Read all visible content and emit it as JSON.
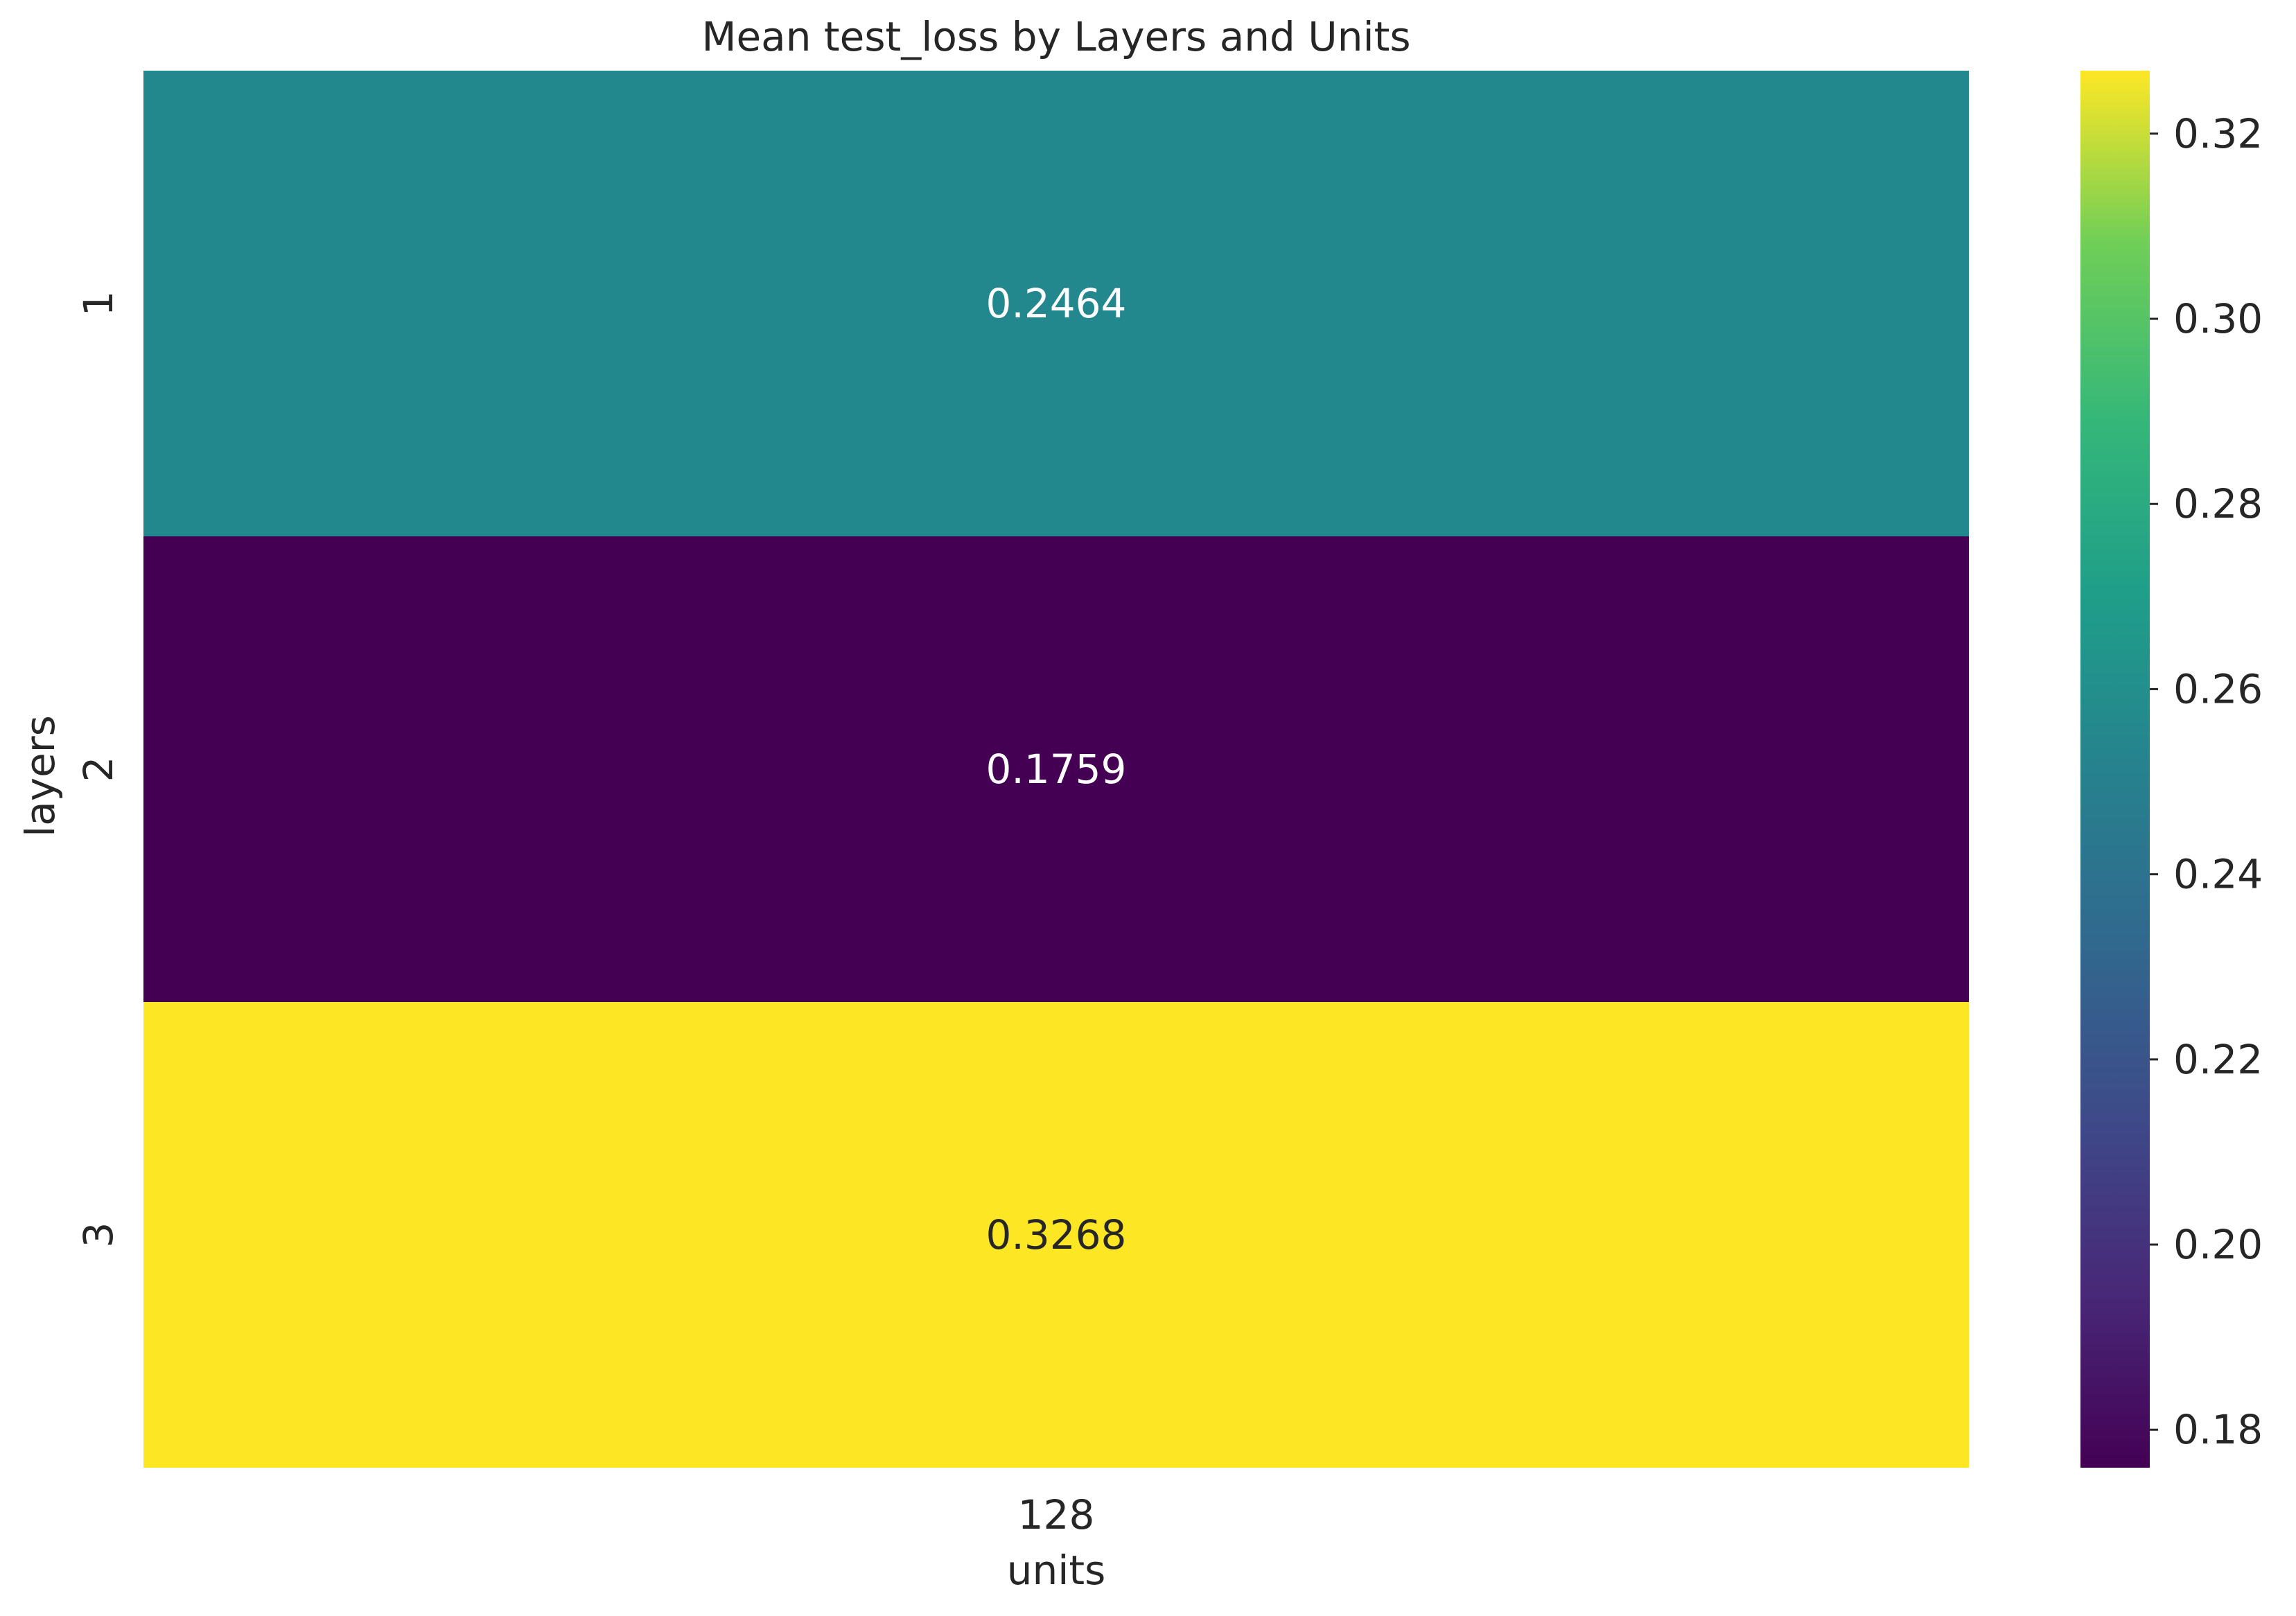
{
  "chart_data": {
    "type": "heatmap",
    "title": "Mean test_loss by Layers and Units",
    "xlabel": "units",
    "ylabel": "layers",
    "x_categories": [
      "128"
    ],
    "y_categories": [
      "1",
      "2",
      "3"
    ],
    "values": [
      [
        0.2464
      ],
      [
        0.1759
      ],
      [
        0.3268
      ]
    ],
    "cell_labels": [
      [
        "0.2464"
      ],
      [
        "0.1759"
      ],
      [
        "0.3268"
      ]
    ],
    "colormap": "viridis",
    "colorbar": {
      "range": [
        0.1759,
        0.3268
      ],
      "ticks": [
        0.18,
        0.2,
        0.22,
        0.24,
        0.26,
        0.28,
        0.3,
        0.32
      ],
      "tick_labels": [
        "0.18",
        "0.20",
        "0.22",
        "0.24",
        "0.26",
        "0.28",
        "0.30",
        "0.32"
      ]
    },
    "cell_colors": [
      "#23888e",
      "#440154",
      "#fde725"
    ],
    "grid": false
  }
}
